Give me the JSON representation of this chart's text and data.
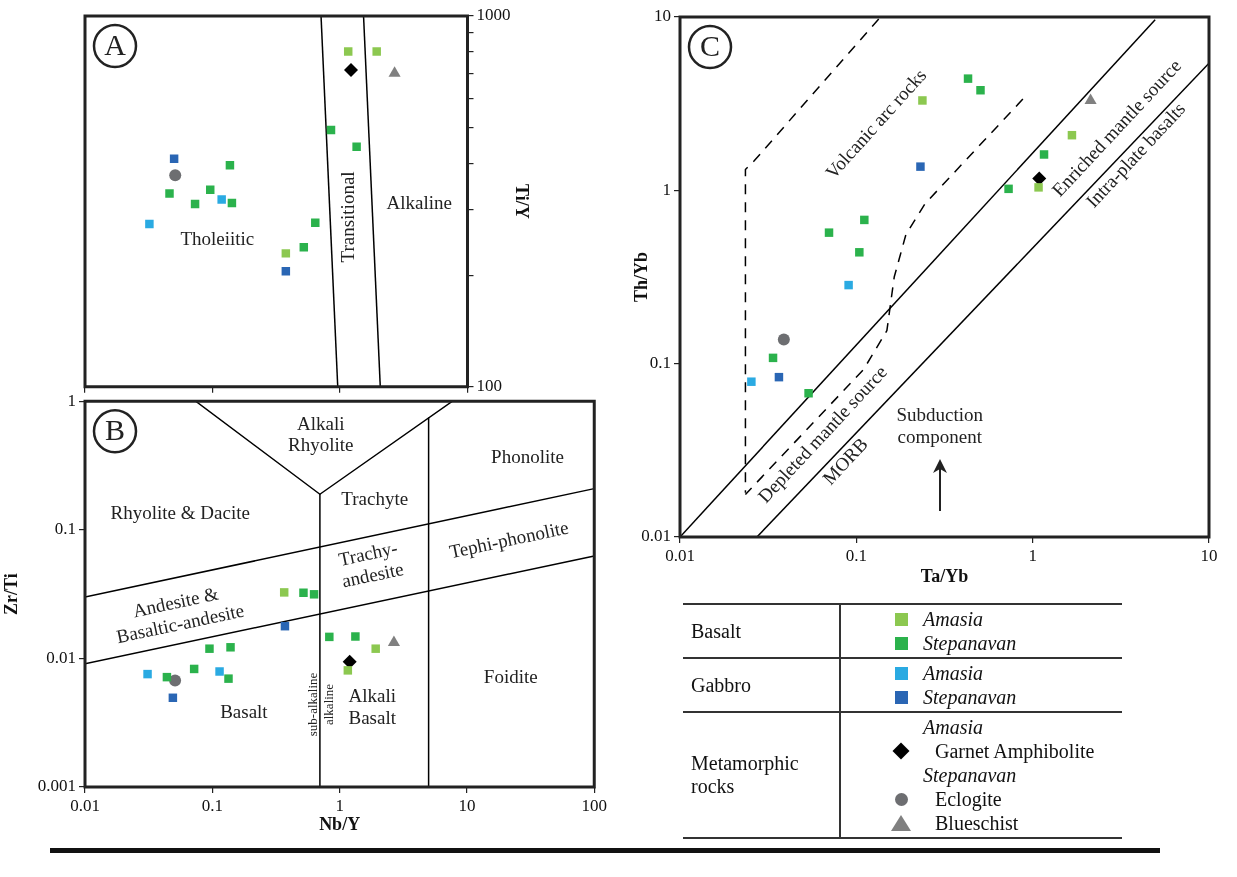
{
  "chart_data": [
    {
      "type": "scatter",
      "ylabel": "Ti/Y",
      "log": "xy",
      "marker": "square",
      "tick_labels": "y",
      "xlim": [
        0.01,
        10
      ],
      "xticks": [
        0.01,
        0.1,
        1,
        10
      ],
      "ylim": [
        100,
        1000
      ],
      "yticks": [
        100,
        {
          "value": 200,
          "label": null
        },
        {
          "value": 300,
          "label": null
        },
        {
          "value": 400,
          "label": null
        },
        {
          "value": 500,
          "label": null
        },
        {
          "value": 600,
          "label": null
        },
        {
          "value": 700,
          "label": null
        },
        {
          "value": 800,
          "label": null
        },
        {
          "value": 900,
          "label": null
        },
        1000
      ],
      "series": [
        {
          "color": "#8cc850",
          "x": [
            1.16,
            1.94,
            0.376
          ],
          "values": [
            802,
            802,
            229
          ]
        },
        {
          "color": "#2bb24c",
          "x": [
            0.85,
            1.35,
            0.137,
            0.046,
            0.096,
            0.073,
            0.142,
            0.64,
            0.52
          ],
          "values": [
            493,
            444,
            396,
            332,
            340,
            311,
            313,
            277,
            238
          ]
        },
        {
          "color": "#2aaae2",
          "x": [
            0.032,
            0.118
          ],
          "values": [
            275,
            320
          ]
        },
        {
          "color": "#2a66b4",
          "x": [
            0.05,
            0.376
          ],
          "values": [
            412,
            205
          ]
        },
        {
          "color": "#000000",
          "marker": "diamond",
          "x": [
            1.22
          ],
          "values": [
            715
          ]
        },
        {
          "color": "#6d6e71",
          "marker": "circle",
          "x": [
            0.051
          ],
          "values": [
            372
          ]
        },
        {
          "color": "#808080",
          "marker": "triangle",
          "x": [
            2.68
          ],
          "values": [
            701
          ]
        },
        {
          "type": "line",
          "color": "#000000",
          "marker": "none",
          "x": [
            0.71,
            0.96
          ],
          "values": [
            1000,
            100
          ]
        },
        {
          "type": "line",
          "color": "#000000",
          "marker": "none",
          "x": [
            1.53,
            2.07
          ],
          "values": [
            1000,
            100
          ]
        }
      ],
      "annotations": [
        "A",
        "Tholeiitic",
        "Transitional",
        "Alkaline"
      ]
    },
    {
      "type": "scatter",
      "xlabel": "Nb/Y",
      "ylabel": "Zr/Ti",
      "log": "xy",
      "marker": "square",
      "xlim": [
        0.01,
        100
      ],
      "xticks": [
        0.01,
        0.1,
        1,
        10,
        100
      ],
      "ylim": [
        0.001,
        1
      ],
      "yticks": [
        0.001,
        0.01,
        0.1,
        1
      ],
      "series": [
        {
          "color": "#8cc850",
          "x": [
            0.367,
            1.16,
            1.92
          ],
          "values": [
            0.0326,
            0.00807,
            0.0119
          ]
        },
        {
          "color": "#2bb24c",
          "x": [
            0.52,
            0.63,
            0.83,
            1.33,
            0.095,
            0.139,
            0.072,
            0.044,
            0.134
          ],
          "values": [
            0.0324,
            0.0315,
            0.0147,
            0.0148,
            0.0119,
            0.0122,
            0.00828,
            0.00715,
            0.00696
          ]
        },
        {
          "color": "#2aaae2",
          "x": [
            0.031,
            0.114
          ],
          "values": [
            0.00755,
            0.00791
          ]
        },
        {
          "color": "#2a66b4",
          "x": [
            0.372,
            0.049
          ],
          "values": [
            0.0178,
            0.00494
          ]
        },
        {
          "color": "#000000",
          "marker": "diamond",
          "x": [
            1.2
          ],
          "values": [
            0.00942
          ]
        },
        {
          "color": "#6d6e71",
          "marker": "circle",
          "x": [
            0.051
          ],
          "values": [
            0.00673
          ]
        },
        {
          "color": "#808080",
          "marker": "triangle",
          "x": [
            2.67
          ],
          "values": [
            0.0133
          ]
        },
        {
          "type": "line",
          "color": "#000000",
          "marker": "none",
          "x": [
            0.074,
            0.7,
            7.7
          ],
          "values": [
            1,
            0.189,
            1
          ]
        },
        {
          "type": "line",
          "color": "#000000",
          "marker": "none",
          "x": [
            0.7,
            0.7
          ],
          "values": [
            0.189,
            0.001
          ]
        },
        {
          "type": "line",
          "color": "#000000",
          "marker": "none",
          "x": [
            5,
            5
          ],
          "values": [
            0.74,
            0.001
          ]
        },
        {
          "type": "line",
          "color": "#000000",
          "marker": "none",
          "x": [
            0.01,
            100
          ],
          "values": [
            0.03,
            0.209
          ]
        },
        {
          "type": "line",
          "color": "#000000",
          "marker": "none",
          "x": [
            0.01,
            100
          ],
          "values": [
            0.0091,
            0.0625
          ]
        }
      ],
      "annotations": [
        "B",
        "Alkali\nRhyolite",
        "Phonolite",
        "Trachyte",
        "Rhyolite & Dacite",
        "Tephi-phonolite",
        "Trachy-\nandesite",
        "Andesite &\nBasaltic-andesite",
        "Basalt",
        "sub-alkaline",
        "alkaline",
        "Alkali\nBasalt",
        "Foidite"
      ]
    },
    {
      "type": "scatter",
      "xlabel": "Ta/Yb",
      "ylabel": "Th/Yb",
      "log": "xy",
      "marker": "square",
      "legend": "bottom",
      "xlim": [
        0.01,
        10
      ],
      "xticks": [
        0.01,
        0.1,
        1,
        10
      ],
      "ylim": [
        0.01,
        10
      ],
      "yticks": [
        0.01,
        0.1,
        1,
        10
      ],
      "series": [
        {
          "name": "Amasia",
          "color": "#8cc850",
          "x": [
            0.237,
            1.67,
            1.08
          ],
          "values": [
            3.3,
            2.08,
            1.04
          ]
        },
        {
          "name": "Stepanavan",
          "color": "#2bb24c",
          "x": [
            0.43,
            0.506,
            1.16,
            0.73,
            0.07,
            0.111,
            0.104,
            0.0337,
            0.0536
          ],
          "values": [
            4.41,
            3.78,
            1.61,
            1.02,
            0.57,
            0.675,
            0.439,
            0.108,
            0.0675
          ]
        },
        {
          "name": "Amasia",
          "color": "#2aaae2",
          "x": [
            0.0904,
            0.0254
          ],
          "values": [
            0.284,
            0.0787
          ]
        },
        {
          "name": "Stepanavan",
          "color": "#2a66b4",
          "x": [
            0.231,
            0.0364
          ],
          "values": [
            1.37,
            0.0836
          ]
        },
        {
          "name": "Garnet Amphibolite",
          "color": "#000000",
          "marker": "diamond",
          "x": [
            1.09
          ],
          "values": [
            1.17
          ]
        },
        {
          "name": "Eclogite",
          "color": "#6d6e71",
          "marker": "circle",
          "x": [
            0.0388
          ],
          "values": [
            0.138
          ]
        },
        {
          "name": "Blueschist",
          "color": "#808080",
          "marker": "triangle",
          "x": [
            2.13
          ],
          "values": [
            3.3
          ]
        },
        {
          "type": "line",
          "color": "#000000",
          "marker": "none",
          "x": [
            0.01,
            4.95
          ],
          "values": [
            0.01,
            9.65
          ]
        },
        {
          "type": "line",
          "color": "#000000",
          "marker": "none",
          "x": [
            0.0273,
            10
          ],
          "values": [
            0.01,
            5.41
          ]
        },
        {
          "type": "line",
          "color": "#000000",
          "marker": "none",
          "line_style": "dashed",
          "x": [
            0.134,
            0.0262,
            0.0235,
            0.0235
          ],
          "values": [
            9.75,
            1.47,
            1.32,
            0.018
          ]
        },
        {
          "type": "line",
          "color": "#000000",
          "marker": "none",
          "line_style": "dashed",
          "x": [
            0.88,
            0.245,
            0.191,
            0.164,
            0.149,
            0.11,
            0.0235
          ],
          "values": [
            3.36,
            0.836,
            0.555,
            0.316,
            0.155,
            0.0927,
            0.0176
          ]
        }
      ],
      "annotations": [
        "C",
        "Volcanic arc rocks",
        "Enriched mantle source",
        "Intra-plate basalts",
        "Depleted mantle source",
        "MORB",
        "Subduction\ncomponent",
        "Basalt",
        "Gabbro",
        "Metamorphic rocks",
        "Amasia",
        "Stepanavan"
      ]
    }
  ]
}
